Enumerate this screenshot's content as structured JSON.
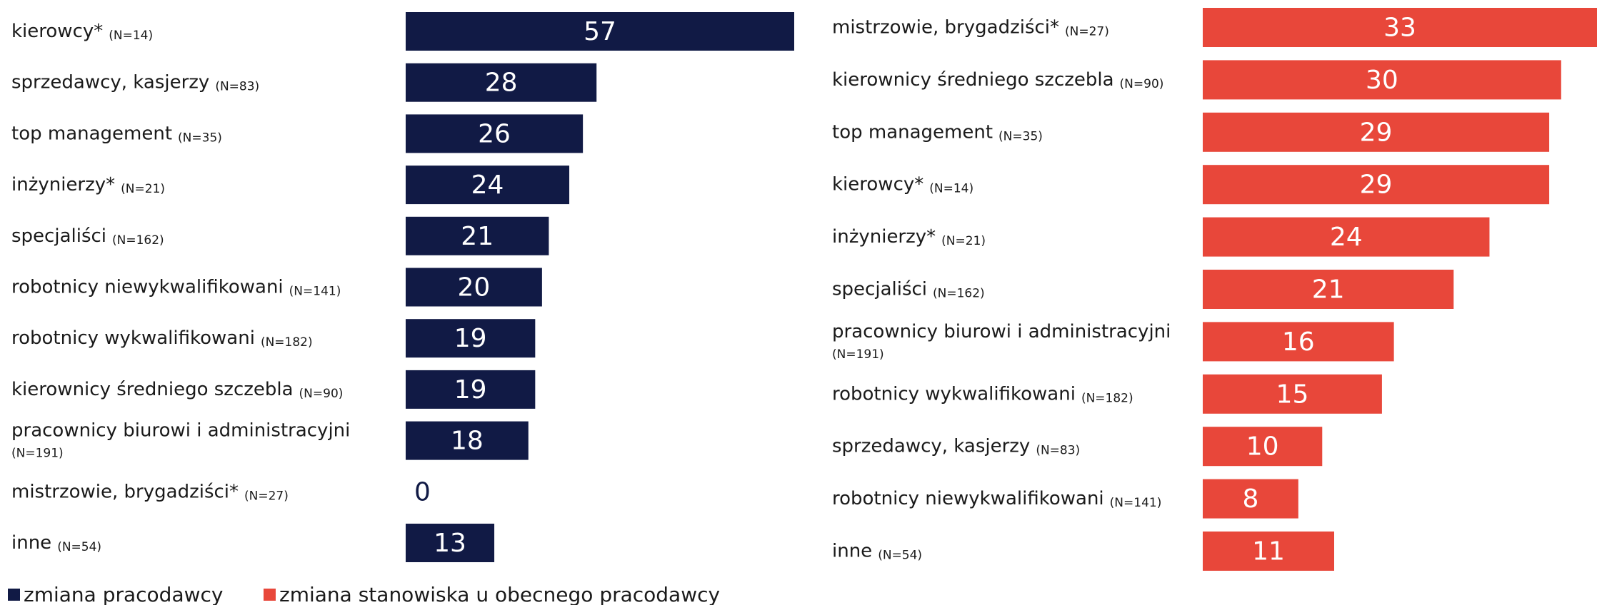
{
  "chart_data": [
    {
      "type": "bar",
      "orientation": "horizontal",
      "categories": [
        "kierowcy*",
        "sprzedawcy, kasjerzy",
        "top management",
        "inżynierzy*",
        "specjaliści",
        "robotnicy niewykwalifikowani",
        "robotnicy wykwalifikowani",
        "kierownicy średniego szczebla",
        "pracownicy biurowi i administracyjni",
        "mistrzowie, brygadziści*",
        "inne"
      ],
      "category_notes": [
        "(N=14)",
        "(N=83)",
        "(N=35)",
        "(N=21)",
        "(N=162)",
        "(N=141)",
        "(N=182)",
        "(N=90)",
        "(N=191)",
        "(N=27)",
        "(N=54)"
      ],
      "series": [
        {
          "name": "zmiana pracodawcy",
          "color": "#111a45",
          "values": [
            57,
            28,
            26,
            24,
            21,
            20,
            19,
            19,
            18,
            0,
            13
          ]
        }
      ],
      "xlim": [
        0,
        57
      ]
    },
    {
      "type": "bar",
      "orientation": "horizontal",
      "categories": [
        "mistrzowie, brygadziści*",
        "kierownicy średniego szczebla",
        "top management",
        "kierowcy*",
        "inżynierzy*",
        "specjaliści",
        "pracownicy biurowi i administracyjni",
        "robotnicy wykwalifikowani",
        "sprzedawcy, kasjerzy",
        "robotnicy niewykwalifikowani",
        "inne"
      ],
      "category_notes": [
        "(N=27)",
        "(N=90)",
        "(N=35)",
        "(N=14)",
        "(N=21)",
        "(N=162)",
        "(N=191)",
        "(N=182)",
        "(N=83)",
        "(N=141)",
        "(N=54)"
      ],
      "series": [
        {
          "name": "zmiana stanowiska u obecnego pracodawcy",
          "color": "#e8473a",
          "values": [
            33,
            30,
            29,
            29,
            24,
            21,
            16,
            15,
            10,
            8,
            11
          ]
        }
      ],
      "xlim": [
        0,
        33
      ]
    }
  ]
}
